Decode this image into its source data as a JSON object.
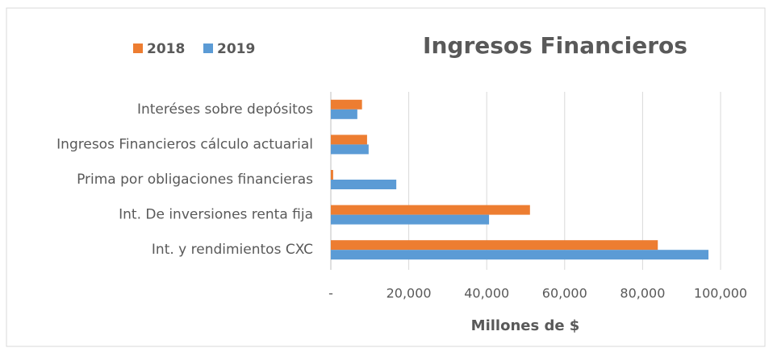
{
  "chart_data": {
    "type": "hbar",
    "title": "Ingresos Financieros",
    "x_label": "Millones de $",
    "categories": [
      "Interéses sobre depósitos",
      "Ingresos Financieros cálculo actuarial",
      "Prima por obligaciones financieras",
      "Int. De inversiones renta fija",
      "Int. y rendimientos CXC"
    ],
    "series": [
      {
        "name": "2018",
        "color": "#ED7D31",
        "values": [
          8000,
          9300,
          600,
          51100,
          83900
        ]
      },
      {
        "name": "2019",
        "color": "#5B9BD5",
        "values": [
          6800,
          9700,
          16800,
          40600,
          96900
        ]
      }
    ],
    "xlim": [
      0,
      100000
    ],
    "xticks": [
      {
        "value": 0,
        "label": "-"
      },
      {
        "value": 20000,
        "label": "20,000"
      },
      {
        "value": 40000,
        "label": "40,000"
      },
      {
        "value": 60000,
        "label": "60,000"
      },
      {
        "value": 80000,
        "label": "80,000"
      },
      {
        "value": 100000,
        "label": "100,000"
      }
    ],
    "grid": true,
    "legend": "top-left"
  }
}
